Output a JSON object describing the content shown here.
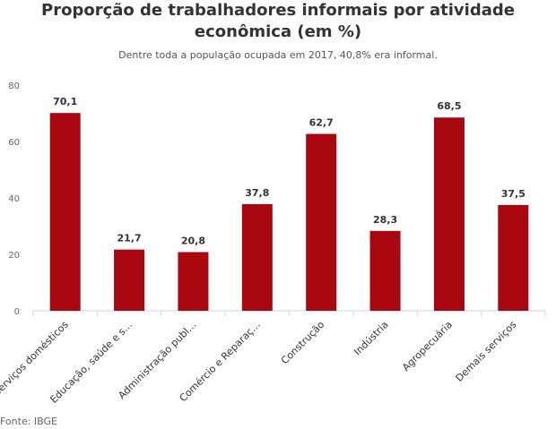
{
  "chart_data": {
    "type": "bar",
    "title": "Proporção de trabalhadores informais por atividade econômica (em %)",
    "subtitle": "Dentre toda a população ocupada em 2017, 40,8% era informal.",
    "categories": [
      "Serviços domésticos",
      "Educação, saúde e s…",
      "Administração publ…",
      "Comércio e Reparaç…",
      "Construção",
      "Indústria",
      "Agropecuária",
      "Demais serviços"
    ],
    "values": [
      70.1,
      21.7,
      20.8,
      37.8,
      62.7,
      28.3,
      68.5,
      37.5
    ],
    "data_labels": [
      "70,1",
      "21,7",
      "20,8",
      "37,8",
      "62,7",
      "28,3",
      "68,5",
      "37,5"
    ],
    "yticks": [
      0,
      20,
      40,
      60,
      80
    ],
    "ylim": [
      0,
      80
    ],
    "xlabel": "",
    "ylabel": "",
    "grid": false,
    "legend": "none",
    "bar_color": "#a8070f",
    "source": "Fonte: IBGE"
  }
}
